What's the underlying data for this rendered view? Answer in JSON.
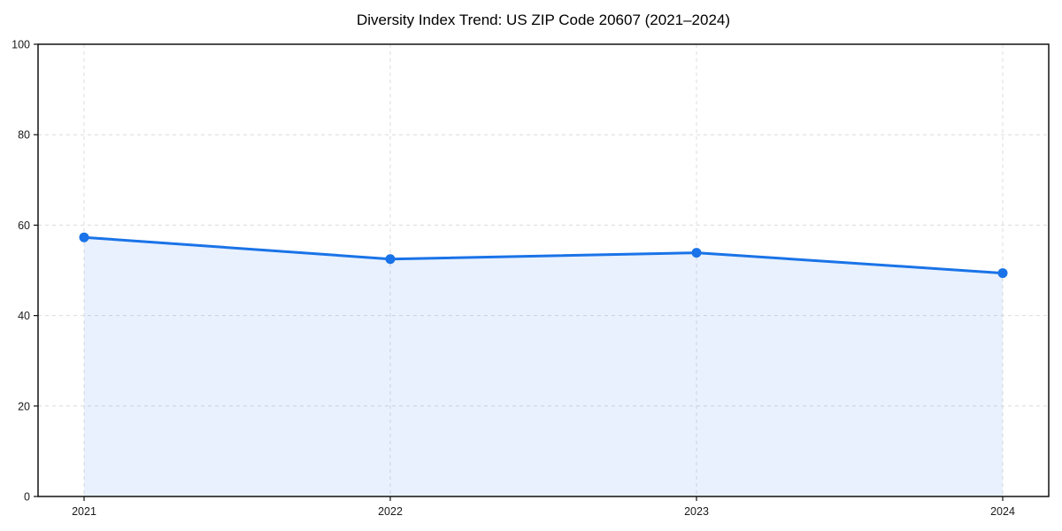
{
  "chart_data": {
    "type": "area",
    "title": "Diversity Index Trend: US ZIP Code 20607 (2021–2024)",
    "categories": [
      "2021",
      "2022",
      "2023",
      "2024"
    ],
    "series": [
      {
        "name": "Diversity Index",
        "values": [
          57.3,
          52.5,
          53.9,
          49.4
        ]
      }
    ],
    "xlabel": "",
    "ylabel": "",
    "ylim": [
      0,
      100
    ],
    "yticks": [
      0,
      20,
      40,
      60,
      80,
      100
    ],
    "grid": "dashed both axes",
    "legend_position": "none",
    "colors": {
      "line": "#1a73e8",
      "marker": "#1a73e8",
      "area_fill": "rgba(26,115,232,0.10)",
      "gridline": "#dcdcdc",
      "axis": "#111111",
      "tick_text": "#1a1a1a",
      "background": "#ffffff"
    }
  }
}
